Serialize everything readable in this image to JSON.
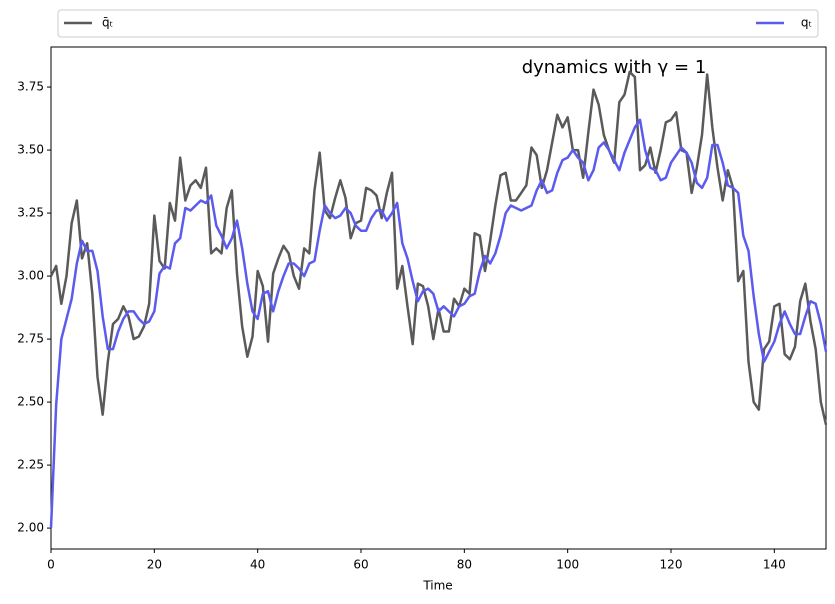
{
  "chart_data": {
    "type": "line",
    "annotation": "dynamics with γ = 1",
    "x_label": "Time",
    "legend": "top",
    "xlim": [
      0,
      150
    ],
    "xticks": [
      0,
      20,
      40,
      60,
      80,
      100,
      120,
      140
    ],
    "ylim": [
      1.917,
      3.909
    ],
    "yticks": [
      {
        "value": 2.0,
        "label": "2.00"
      },
      {
        "value": 2.25,
        "label": "2.25"
      },
      {
        "value": 2.5,
        "label": "2.50"
      },
      {
        "value": 2.75,
        "label": "2.75"
      },
      {
        "value": 3.0,
        "label": "3.00"
      },
      {
        "value": 3.25,
        "label": "3.25"
      },
      {
        "value": 3.5,
        "label": "3.50"
      },
      {
        "value": 3.75,
        "label": "3.75"
      }
    ],
    "x": [
      0,
      1,
      2,
      3,
      4,
      5,
      6,
      7,
      8,
      9,
      10,
      11,
      12,
      13,
      14,
      15,
      16,
      17,
      18,
      19,
      20,
      21,
      22,
      23,
      24,
      25,
      26,
      27,
      28,
      29,
      30,
      31,
      32,
      33,
      34,
      35,
      36,
      37,
      38,
      39,
      40,
      41,
      42,
      43,
      44,
      45,
      46,
      47,
      48,
      49,
      50,
      51,
      52,
      53,
      54,
      55,
      56,
      57,
      58,
      59,
      60,
      61,
      62,
      63,
      64,
      65,
      66,
      67,
      68,
      69,
      70,
      71,
      72,
      73,
      74,
      75,
      76,
      77,
      78,
      79,
      80,
      81,
      82,
      83,
      84,
      85,
      86,
      87,
      88,
      89,
      90,
      91,
      92,
      93,
      94,
      95,
      96,
      97,
      98,
      99,
      100,
      101,
      102,
      103,
      104,
      105,
      106,
      107,
      108,
      109,
      110,
      111,
      112,
      113,
      114,
      115,
      116,
      117,
      118,
      119,
      120,
      121,
      122,
      123,
      124,
      125,
      126,
      127,
      128,
      129,
      130,
      131,
      132,
      133,
      134,
      135,
      136,
      137,
      138,
      139,
      140,
      141,
      142,
      143,
      144,
      145,
      146,
      147,
      148,
      149,
      150
    ],
    "series": [
      {
        "name": "q̄ₜ",
        "color": "#5a5a5a",
        "values": [
          3.0,
          3.04,
          2.89,
          3.0,
          3.21,
          3.3,
          3.07,
          3.13,
          2.93,
          2.6,
          2.45,
          2.66,
          2.81,
          2.83,
          2.88,
          2.84,
          2.75,
          2.76,
          2.8,
          2.89,
          3.24,
          3.06,
          3.03,
          3.29,
          3.22,
          3.47,
          3.3,
          3.36,
          3.38,
          3.35,
          3.43,
          3.09,
          3.11,
          3.09,
          3.27,
          3.34,
          3.01,
          2.8,
          2.68,
          2.76,
          3.02,
          2.96,
          2.74,
          3.01,
          3.07,
          3.12,
          3.09,
          3.0,
          2.95,
          3.11,
          3.09,
          3.34,
          3.49,
          3.26,
          3.23,
          3.31,
          3.38,
          3.31,
          3.15,
          3.21,
          3.22,
          3.35,
          3.34,
          3.32,
          3.23,
          3.33,
          3.41,
          2.95,
          3.04,
          2.88,
          2.73,
          2.97,
          2.96,
          2.88,
          2.75,
          2.87,
          2.78,
          2.78,
          2.91,
          2.88,
          2.95,
          2.93,
          3.17,
          3.16,
          3.02,
          3.14,
          3.28,
          3.4,
          3.41,
          3.3,
          3.3,
          3.33,
          3.36,
          3.51,
          3.48,
          3.35,
          3.42,
          3.53,
          3.64,
          3.59,
          3.63,
          3.5,
          3.5,
          3.39,
          3.57,
          3.74,
          3.68,
          3.56,
          3.5,
          3.45,
          3.69,
          3.72,
          3.81,
          3.79,
          3.42,
          3.44,
          3.51,
          3.41,
          3.5,
          3.61,
          3.62,
          3.65,
          3.5,
          3.49,
          3.33,
          3.43,
          3.56,
          3.8,
          3.59,
          3.43,
          3.3,
          3.42,
          3.35,
          2.98,
          3.02,
          2.66,
          2.5,
          2.47,
          2.71,
          2.74,
          2.88,
          2.89,
          2.69,
          2.67,
          2.72,
          2.9,
          2.97,
          2.82,
          2.71,
          2.5,
          2.41
        ]
      },
      {
        "name": "qₜ",
        "color": "#5b5bef",
        "values": [
          2.0,
          2.49,
          2.75,
          2.83,
          2.91,
          3.05,
          3.14,
          3.1,
          3.1,
          3.02,
          2.84,
          2.71,
          2.71,
          2.78,
          2.83,
          2.86,
          2.86,
          2.83,
          2.81,
          2.82,
          2.86,
          3.01,
          3.04,
          3.03,
          3.13,
          3.15,
          3.27,
          3.26,
          3.28,
          3.3,
          3.29,
          3.32,
          3.2,
          3.16,
          3.11,
          3.15,
          3.22,
          3.11,
          2.97,
          2.86,
          2.83,
          2.93,
          2.94,
          2.86,
          2.94,
          3.0,
          3.05,
          3.05,
          3.03,
          3.0,
          3.05,
          3.06,
          3.18,
          3.28,
          3.25,
          3.23,
          3.24,
          3.27,
          3.25,
          3.2,
          3.18,
          3.18,
          3.23,
          3.26,
          3.26,
          3.22,
          3.25,
          3.29,
          3.13,
          3.07,
          2.98,
          2.9,
          2.94,
          2.95,
          2.93,
          2.86,
          2.88,
          2.86,
          2.84,
          2.88,
          2.89,
          2.92,
          2.93,
          3.02,
          3.08,
          3.05,
          3.09,
          3.16,
          3.25,
          3.28,
          3.27,
          3.26,
          3.27,
          3.28,
          3.34,
          3.38,
          3.33,
          3.34,
          3.41,
          3.46,
          3.47,
          3.5,
          3.47,
          3.45,
          3.38,
          3.42,
          3.51,
          3.53,
          3.5,
          3.46,
          3.42,
          3.49,
          3.54,
          3.59,
          3.62,
          3.5,
          3.43,
          3.42,
          3.38,
          3.39,
          3.45,
          3.48,
          3.51,
          3.49,
          3.45,
          3.37,
          3.35,
          3.39,
          3.52,
          3.52,
          3.45,
          3.36,
          3.35,
          3.33,
          3.16,
          3.1,
          2.92,
          2.77,
          2.66,
          2.7,
          2.74,
          2.81,
          2.86,
          2.81,
          2.77,
          2.77,
          2.84,
          2.9,
          2.89,
          2.81,
          2.7
        ]
      }
    ]
  }
}
